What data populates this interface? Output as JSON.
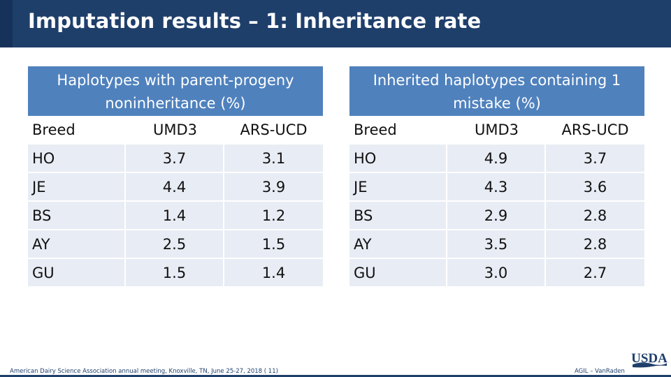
{
  "slide": {
    "title": "Imputation results – 1: Inheritance rate",
    "footer_left": "American Dairy Science Association annual meeting, Knoxville, TN, June 25-27, 2018 (   11)",
    "footer_right": "AGIL – VanRaden",
    "logo_text": "USDA",
    "accent_color": "#1f3f6b",
    "table_header_color": "#4f81bd"
  },
  "tables": [
    {
      "title": "Haplotypes with parent-progeny noninheritance (%)",
      "columns": [
        "Breed",
        "UMD3",
        "ARS-UCD"
      ],
      "rows": [
        {
          "breed": "HO",
          "umd3": "3.7",
          "ars": "3.1"
        },
        {
          "breed": "JE",
          "umd3": "4.4",
          "ars": "3.9"
        },
        {
          "breed": "BS",
          "umd3": "1.4",
          "ars": "1.2"
        },
        {
          "breed": "AY",
          "umd3": "2.5",
          "ars": "1.5"
        },
        {
          "breed": "GU",
          "umd3": "1.5",
          "ars": "1.4"
        }
      ]
    },
    {
      "title": "Inherited haplotypes containing 1 mistake  (%)",
      "columns": [
        "Breed",
        "UMD3",
        "ARS-UCD"
      ],
      "rows": [
        {
          "breed": "HO",
          "umd3": "4.9",
          "ars": "3.7"
        },
        {
          "breed": "JE",
          "umd3": "4.3",
          "ars": "3.6"
        },
        {
          "breed": "BS",
          "umd3": "2.9",
          "ars": "2.8"
        },
        {
          "breed": "AY",
          "umd3": "3.5",
          "ars": "2.8"
        },
        {
          "breed": "GU",
          "umd3": "3.0",
          "ars": "2.7"
        }
      ]
    }
  ]
}
